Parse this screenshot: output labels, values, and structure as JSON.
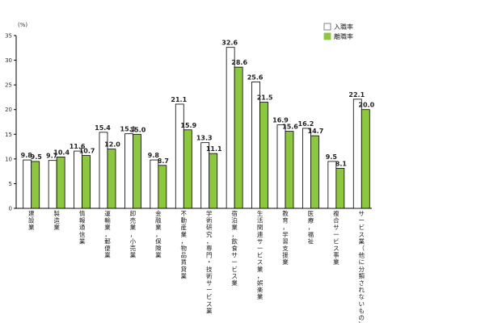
{
  "chart_data": {
    "type": "bar",
    "unit": "(%)",
    "ylim": [
      0,
      35
    ],
    "yticks": [
      0,
      5,
      10,
      15,
      20,
      25,
      30,
      35
    ],
    "grid": false,
    "legend_position": "top-right",
    "categories": [
      "建設業",
      "製造業",
      "情報通信業",
      "運輸業，郵便業",
      "卸売業，小売業",
      "金融業，保険業",
      "不動産業，物品賃貸業",
      "学術研究，専門・技術サービス業",
      "宿泊業，飲食サービス業",
      "生活関連サービス業，娯楽業",
      "教育，学習支援業",
      "医療，福祉",
      "複合サービス事業",
      "サービス業（他に分類されないもの）"
    ],
    "series": [
      {
        "name": "入職率",
        "color": "#ffffff",
        "values": [
          9.8,
          9.7,
          11.6,
          15.4,
          15.1,
          9.8,
          21.1,
          13.3,
          32.6,
          25.6,
          16.9,
          16.2,
          9.5,
          22.1
        ]
      },
      {
        "name": "離職率",
        "color": "#8dc63f",
        "values": [
          9.5,
          10.4,
          10.7,
          12.0,
          15.0,
          8.7,
          15.9,
          11.1,
          28.6,
          21.5,
          15.6,
          14.7,
          8.1,
          20.0
        ]
      }
    ]
  }
}
